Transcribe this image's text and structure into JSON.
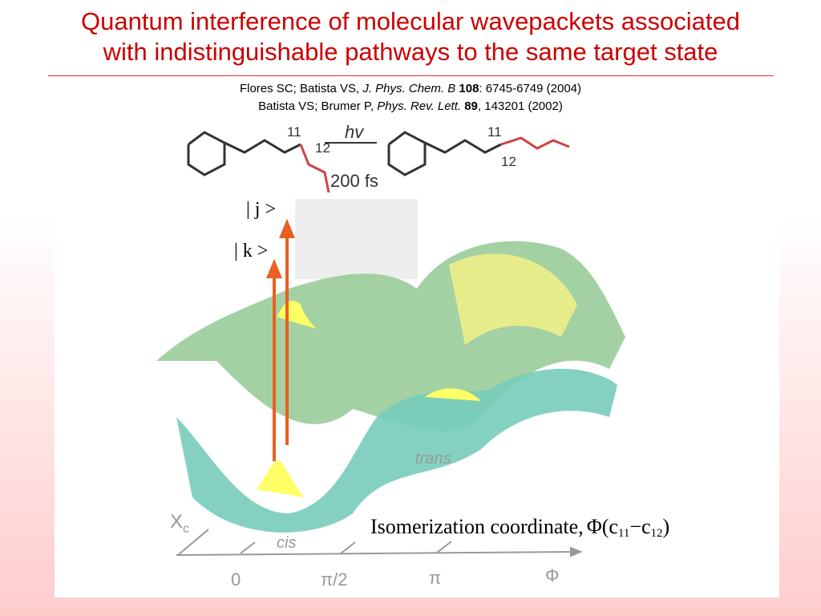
{
  "header": {
    "title_lines": [
      "Quantum interference of molecular wavepackets associated",
      "with indistinguishable pathways to the same target state"
    ]
  },
  "references": [
    {
      "authors": "Flores SC; Batista VS, ",
      "journal": "J. Phys. Chem. B",
      "volume": "108",
      "rest": ": 6745-6749 (2004)"
    },
    {
      "authors": "Batista VS; Brumer P, ",
      "journal": "Phys. Rev. Lett.",
      "volume": "89",
      "rest": ", 143201 (2002)"
    }
  ],
  "figure": {
    "molecule": {
      "label_11_left": "11",
      "label_12_left": "12",
      "photon": "hv",
      "time": "200 fs",
      "label_11_right": "11",
      "label_12_right": "12"
    },
    "states": {
      "j": "| j >",
      "k": "| k >"
    },
    "surface_labels": {
      "trans": "trans",
      "cis": "cis",
      "xc": "X",
      "xc_sub": "c"
    },
    "axis": {
      "ticks": [
        "0",
        "π/2",
        "π"
      ],
      "symbol": "Φ"
    },
    "coordinate_label": {
      "text": "Isomerization coordinate,",
      "phi": "Φ(c",
      "sub1": "11",
      "minus": "−c",
      "sub2": "12",
      "close": ")"
    }
  }
}
